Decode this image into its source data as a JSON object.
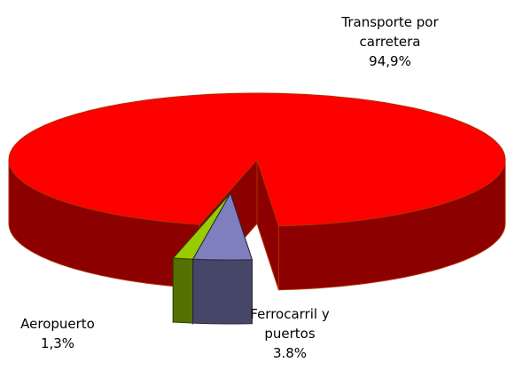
{
  "chart_data": {
    "type": "pie3d",
    "categories": [
      "Transporte por carretera",
      "Aeropuerto",
      "Ferrocarril y puertos"
    ],
    "values": [
      94.9,
      1.3,
      3.8
    ],
    "value_labels": [
      "94,9%",
      "1,3%",
      "3.8%"
    ],
    "colors": [
      "#ff0000",
      "#99cc00",
      "#7f7fbf"
    ]
  }
}
